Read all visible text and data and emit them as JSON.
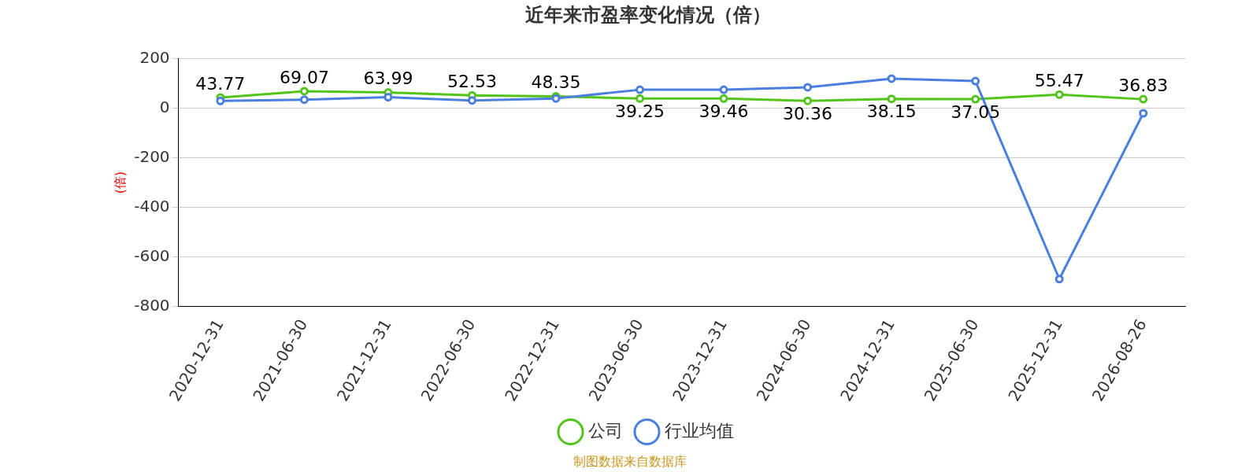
{
  "chart_data": {
    "type": "line",
    "title": "近年来市盈率变化情况（倍）",
    "ylabel": "(倍)",
    "categories": [
      "2020-12-31",
      "2021-06-30",
      "2021-12-31",
      "2022-06-30",
      "2022-12-31",
      "2023-06-30",
      "2023-12-31",
      "2024-06-30",
      "2024-12-31",
      "2025-06-30",
      "2025-12-31",
      "2026-08-26"
    ],
    "series": [
      {
        "name": "公司",
        "color": "#52c41a",
        "values": [
          43.77,
          69.07,
          63.99,
          52.53,
          48.35,
          39.25,
          39.46,
          30.36,
          38.15,
          37.05,
          55.47,
          36.83
        ],
        "value_labels": [
          "43.77",
          "69.07",
          "63.99",
          "52.53",
          "48.35",
          "39.25",
          "39.46",
          "30.36",
          "38.15",
          "37.05",
          "55.47",
          "36.83"
        ]
      },
      {
        "name": "行业均值",
        "color": "#4a7fe0",
        "values": [
          30,
          35,
          45,
          32,
          40,
          75,
          75,
          85,
          120,
          110,
          -690,
          -20
        ]
      }
    ],
    "ylim": [
      -800,
      200
    ],
    "yticks": [
      -800,
      -600,
      -400,
      -200,
      0,
      200
    ],
    "grid": "y",
    "legend": "bottom",
    "marker": "circle",
    "line_style": "solid",
    "annotations": [
      "制图数据来自数据库"
    ]
  }
}
